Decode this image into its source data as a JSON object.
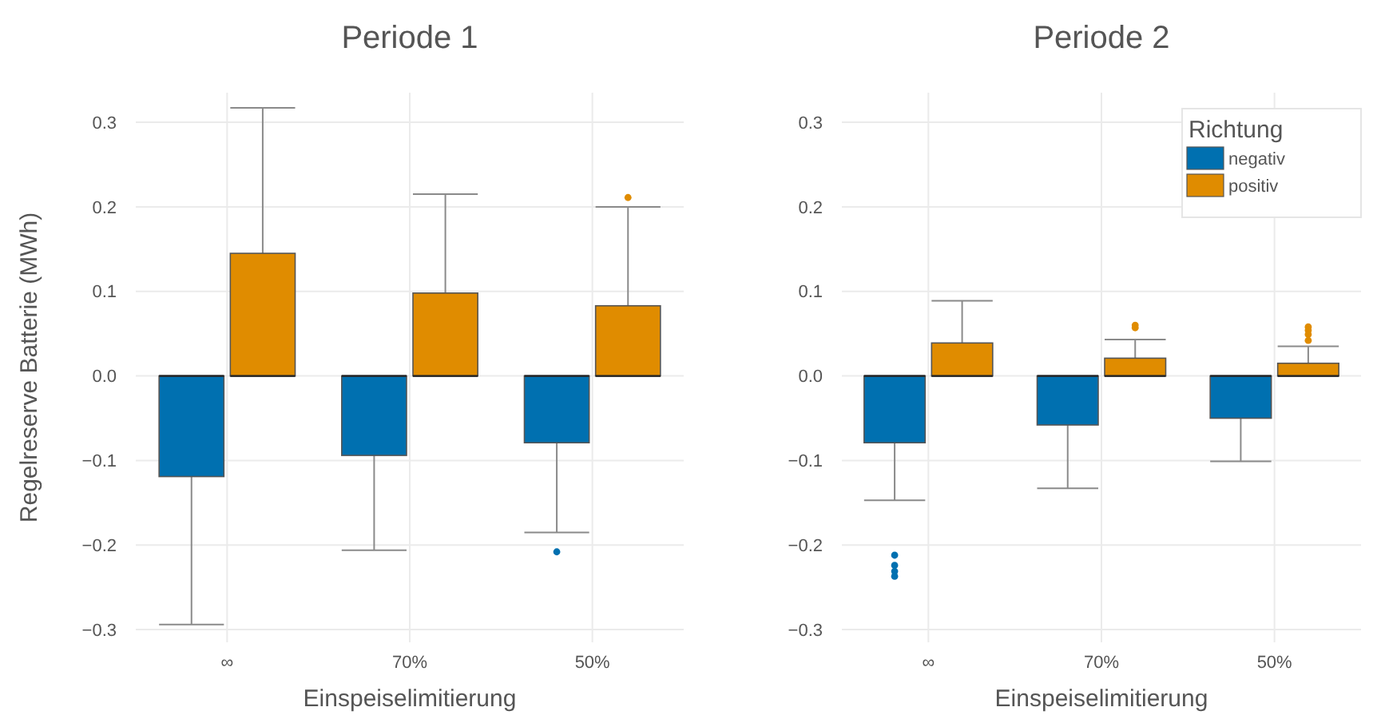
{
  "chart_data": [
    {
      "type": "box",
      "title": "Periode 1",
      "xlabel": "Einspeiselimitierung",
      "ylabel": "Regelreserve Batterie (MWh)",
      "categories": [
        "∞",
        "70%",
        "50%"
      ],
      "ylim": [
        -0.315,
        0.335
      ],
      "yticks": [
        -0.3,
        -0.2,
        -0.1,
        {
          "value": 0,
          "label": "0.0"
        },
        0.1,
        0.2,
        0.3
      ],
      "grid": true,
      "legend": false,
      "series": [
        {
          "color": "#0070b0",
          "boxes": [
            {
              "low": -0.294,
              "q1": -0.119,
              "median": 0,
              "q3": 0,
              "high": 0
            },
            {
              "low": -0.206,
              "q1": -0.094,
              "median": 0,
              "q3": 0,
              "high": 0
            },
            {
              "low": -0.185,
              "q1": -0.079,
              "median": 0,
              "q3": 0,
              "high": 0,
              "outliers": [
                -0.208
              ]
            }
          ]
        },
        {
          "color": "#e08c00",
          "boxes": [
            {
              "low": 0,
              "q1": 0,
              "median": 0,
              "q3": 0.145,
              "high": 0.317
            },
            {
              "low": 0,
              "q1": 0,
              "median": 0,
              "q3": 0.098,
              "high": 0.215
            },
            {
              "low": 0,
              "q1": 0,
              "median": 0,
              "q3": 0.083,
              "high": 0.2,
              "outliers": [
                0.211
              ]
            }
          ]
        }
      ]
    },
    {
      "type": "box",
      "title": "Periode 2",
      "xlabel": "Einspeiselimitierung",
      "legend_title": "Richtung",
      "categories": [
        "∞",
        "70%",
        "50%"
      ],
      "ylim": [
        -0.315,
        0.335
      ],
      "yticks": [
        -0.3,
        -0.2,
        -0.1,
        {
          "value": 0,
          "label": "0.0"
        },
        0.1,
        0.2,
        0.3
      ],
      "grid": true,
      "legend": "top right",
      "series": [
        {
          "name": "negativ",
          "color": "#0070b0",
          "boxes": [
            {
              "low": -0.147,
              "q1": -0.079,
              "median": 0,
              "q3": 0,
              "high": 0,
              "outliers": [
                -0.212,
                -0.224,
                -0.231,
                -0.237
              ]
            },
            {
              "low": -0.133,
              "q1": -0.058,
              "median": 0,
              "q3": 0,
              "high": 0
            },
            {
              "low": -0.101,
              "q1": -0.05,
              "median": 0,
              "q3": 0,
              "high": 0
            }
          ]
        },
        {
          "name": "positiv",
          "color": "#e08c00",
          "boxes": [
            {
              "low": 0,
              "q1": 0,
              "median": 0,
              "q3": 0.039,
              "high": 0.089
            },
            {
              "low": 0,
              "q1": 0,
              "median": 0,
              "q3": 0.021,
              "high": 0.043,
              "outliers": [
                0.06,
                0.057
              ]
            },
            {
              "low": 0,
              "q1": 0,
              "median": 0,
              "q3": 0.015,
              "high": 0.035,
              "outliers": [
                0.058,
                0.054,
                0.049,
                0.042
              ]
            }
          ]
        }
      ]
    }
  ]
}
